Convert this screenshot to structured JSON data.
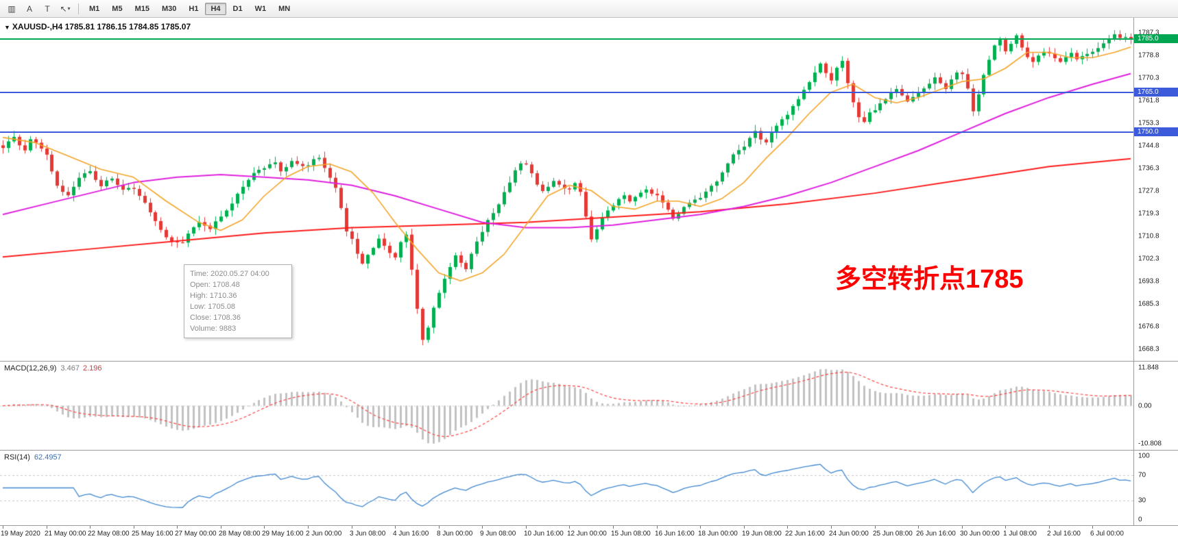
{
  "toolbar": {
    "tools": [
      {
        "id": "chart-type-tool",
        "icon_name": "candlestick-chart-icon",
        "glyph": "▥"
      },
      {
        "id": "text-label-tool",
        "icon_name": "text-a-icon",
        "glyph": "A"
      },
      {
        "id": "text-box-tool",
        "icon_name": "text-t-icon",
        "glyph": "T"
      },
      {
        "id": "drawing-tools-button",
        "icon_name": "arrow-tool-icon",
        "glyph": "↖",
        "caret": "▾"
      }
    ],
    "timeframes": [
      {
        "label": "M1",
        "active": false
      },
      {
        "label": "M5",
        "active": false
      },
      {
        "label": "M15",
        "active": false
      },
      {
        "label": "M30",
        "active": false
      },
      {
        "label": "H1",
        "active": false
      },
      {
        "label": "H4",
        "active": true
      },
      {
        "label": "D1",
        "active": false
      },
      {
        "label": "W1",
        "active": false
      },
      {
        "label": "MN",
        "active": false
      }
    ]
  },
  "header": {
    "collapse_icon": "▼",
    "symbol": "XAUUSD-,H4",
    "ohlc": "1785.81 1786.15 1784.85 1785.07"
  },
  "annotation": {
    "text": "多空转折点1785",
    "color": "#ff0000"
  },
  "tooltip": {
    "lines": [
      "Time: 2020.05.27 04:00",
      "Open: 1708.48",
      "High:  1710.36",
      "Low:  1705.08",
      "Close: 1708.36",
      "Volume: 9883"
    ]
  },
  "price_axis": {
    "min": 1663.9,
    "max": 1793.0,
    "labels": [
      "1787.3",
      "1778.8",
      "1770.3",
      "1761.8",
      "1753.3",
      "1744.8",
      "1736.3",
      "1727.8",
      "1719.3",
      "1710.8",
      "1702.3",
      "1693.8",
      "1685.3",
      "1676.8",
      "1668.3"
    ]
  },
  "hlines": [
    {
      "label": "1785.0",
      "value": 1785.0,
      "color": "#00a651"
    },
    {
      "label": "1765.0",
      "value": 1765.0,
      "color": "#3b5bdb"
    },
    {
      "label": "1750.0",
      "value": 1750.0,
      "color": "#3b5bdb"
    }
  ],
  "chart_data": {
    "type": "candlestick",
    "title": "XAUUSD-,H4",
    "bars": 208,
    "first_open": 1745.0,
    "price_range": [
      1663.9,
      1793.0
    ],
    "horizontal_lines": [
      1785.0,
      1765.0,
      1750.0
    ],
    "colors": {
      "up": "#00b050",
      "down": "#e53935",
      "ma_fast": "#f4a428",
      "ma_mid": "#df20df",
      "ma_slow": "#ff1a1a"
    },
    "closes": [
      1744.0,
      1746.5,
      1748.2,
      1745.0,
      1743.1,
      1747.3,
      1746.0,
      1743.8,
      1741.5,
      1735.2,
      1729.8,
      1727.5,
      1726.2,
      1729.4,
      1732.8,
      1734.5,
      1735.3,
      1732.0,
      1729.6,
      1731.8,
      1732.5,
      1730.1,
      1728.3,
      1729.0,
      1728.6,
      1726.0,
      1723.4,
      1719.8,
      1716.5,
      1713.2,
      1710.4,
      1708.9,
      1708.5,
      1708.4,
      1711.8,
      1714.2,
      1716.1,
      1714.8,
      1713.5,
      1716.4,
      1718.2,
      1720.5,
      1723.1,
      1726.8,
      1729.4,
      1732.0,
      1734.6,
      1735.8,
      1736.4,
      1737.9,
      1738.6,
      1735.2,
      1736.8,
      1739.1,
      1738.0,
      1737.2,
      1737.5,
      1739.8,
      1740.3,
      1736.5,
      1732.8,
      1729.0,
      1721.4,
      1712.6,
      1709.8,
      1704.2,
      1700.5,
      1703.8,
      1706.4,
      1709.9,
      1707.2,
      1704.5,
      1702.8,
      1708.6,
      1711.4,
      1698.2,
      1683.5,
      1671.8,
      1676.4,
      1683.9,
      1689.5,
      1694.8,
      1699.2,
      1703.6,
      1700.8,
      1698.4,
      1704.2,
      1708.8,
      1712.4,
      1716.9,
      1719.5,
      1722.8,
      1727.4,
      1731.0,
      1735.6,
      1738.2,
      1737.8,
      1734.5,
      1730.2,
      1727.8,
      1729.4,
      1731.6,
      1730.2,
      1728.8,
      1728.4,
      1730.8,
      1727.5,
      1718.2,
      1709.6,
      1713.4,
      1717.8,
      1720.5,
      1722.4,
      1724.8,
      1726.2,
      1723.9,
      1725.6,
      1727.2,
      1728.4,
      1726.8,
      1726.2,
      1723.5,
      1720.8,
      1717.4,
      1719.2,
      1721.8,
      1723.4,
      1724.6,
      1725.2,
      1727.6,
      1729.8,
      1731.4,
      1734.8,
      1738.2,
      1741.6,
      1743.2,
      1744.5,
      1747.8,
      1750.4,
      1747.2,
      1746.1,
      1749.8,
      1752.4,
      1754.8,
      1756.5,
      1759.8,
      1762.4,
      1765.9,
      1768.8,
      1772.4,
      1775.8,
      1772.2,
      1769.4,
      1774.2,
      1776.8,
      1768.4,
      1761.2,
      1755.6,
      1753.8,
      1757.4,
      1758.2,
      1760.8,
      1762.4,
      1764.9,
      1766.2,
      1763.8,
      1761.5,
      1763.2,
      1764.8,
      1766.4,
      1768.2,
      1770.6,
      1768.4,
      1766.2,
      1769.8,
      1772.4,
      1771.8,
      1766.4,
      1757.8,
      1764.2,
      1771.5,
      1777.2,
      1782.6,
      1784.8,
      1780.4,
      1783.2,
      1786.4,
      1781.8,
      1778.2,
      1776.4,
      1778.8,
      1780.2,
      1779.6,
      1777.8,
      1776.4,
      1778.2,
      1779.8,
      1777.4,
      1778.6,
      1779.4,
      1780.2,
      1781.6,
      1783.4,
      1785.2,
      1786.8,
      1785.4,
      1785.8,
      1785.07
    ],
    "moving_averages": {
      "fast_orange": [
        [
          0,
          1748
        ],
        [
          6,
          1746
        ],
        [
          12,
          1741
        ],
        [
          18,
          1736
        ],
        [
          24,
          1733
        ],
        [
          30,
          1724
        ],
        [
          36,
          1716
        ],
        [
          40,
          1713
        ],
        [
          44,
          1717
        ],
        [
          48,
          1726
        ],
        [
          52,
          1733
        ],
        [
          56,
          1737
        ],
        [
          60,
          1738
        ],
        [
          64,
          1735
        ],
        [
          68,
          1727
        ],
        [
          72,
          1716
        ],
        [
          76,
          1706
        ],
        [
          80,
          1697
        ],
        [
          84,
          1694
        ],
        [
          88,
          1697
        ],
        [
          92,
          1704
        ],
        [
          96,
          1715
        ],
        [
          100,
          1726
        ],
        [
          104,
          1730
        ],
        [
          108,
          1728
        ],
        [
          112,
          1722
        ],
        [
          116,
          1721
        ],
        [
          120,
          1724
        ],
        [
          124,
          1724
        ],
        [
          128,
          1722
        ],
        [
          132,
          1725
        ],
        [
          136,
          1731
        ],
        [
          140,
          1740
        ],
        [
          144,
          1748
        ],
        [
          148,
          1757
        ],
        [
          152,
          1765
        ],
        [
          156,
          1768
        ],
        [
          160,
          1763
        ],
        [
          164,
          1761
        ],
        [
          168,
          1763
        ],
        [
          172,
          1766
        ],
        [
          176,
          1769
        ],
        [
          180,
          1770
        ],
        [
          184,
          1774
        ],
        [
          188,
          1780
        ],
        [
          192,
          1780
        ],
        [
          196,
          1778
        ],
        [
          200,
          1778
        ],
        [
          204,
          1780
        ],
        [
          207,
          1782
        ]
      ],
      "mid_magenta": [
        [
          0,
          1719
        ],
        [
          8,
          1723
        ],
        [
          16,
          1727
        ],
        [
          24,
          1731
        ],
        [
          32,
          1733
        ],
        [
          40,
          1734
        ],
        [
          48,
          1733
        ],
        [
          56,
          1732
        ],
        [
          64,
          1730
        ],
        [
          72,
          1726
        ],
        [
          80,
          1721
        ],
        [
          88,
          1716
        ],
        [
          96,
          1714
        ],
        [
          104,
          1714
        ],
        [
          112,
          1715
        ],
        [
          120,
          1717
        ],
        [
          128,
          1719
        ],
        [
          136,
          1722
        ],
        [
          144,
          1726
        ],
        [
          152,
          1731
        ],
        [
          160,
          1737
        ],
        [
          168,
          1743
        ],
        [
          176,
          1750
        ],
        [
          184,
          1757
        ],
        [
          192,
          1763
        ],
        [
          200,
          1768
        ],
        [
          207,
          1772
        ]
      ],
      "slow_red": [
        [
          0,
          1703
        ],
        [
          16,
          1706
        ],
        [
          32,
          1709
        ],
        [
          48,
          1712
        ],
        [
          64,
          1714
        ],
        [
          80,
          1715
        ],
        [
          96,
          1716
        ],
        [
          112,
          1718
        ],
        [
          128,
          1720
        ],
        [
          144,
          1723
        ],
        [
          160,
          1727
        ],
        [
          176,
          1732
        ],
        [
          192,
          1737
        ],
        [
          207,
          1740
        ]
      ]
    }
  },
  "macd_panel": {
    "label": "MACD(12,26,9)",
    "value_main": "3.467",
    "value_signal": "2.196",
    "axis": {
      "max": "11.848",
      "mid": "0.00",
      "min": "-10.808"
    },
    "params": {
      "fast": 12,
      "slow": 26,
      "signal": 9
    },
    "colors": {
      "histogram": "#c2c2c2",
      "signal": "#ff4040"
    }
  },
  "rsi_panel": {
    "label": "RSI(14)",
    "value": "62.4957",
    "period": 14,
    "axis": [
      "100",
      "70",
      "30",
      "0"
    ],
    "levels": [
      70,
      30
    ],
    "color": "#3f87d0"
  },
  "time_axis": {
    "labels": [
      "19 May 2020",
      "21 May 00:00",
      "22 May 08:00",
      "25 May 16:00",
      "27 May 00:00",
      "28 May 08:00",
      "29 May 16:00",
      "2 Jun 00:00",
      "3 Jun 08:00",
      "4 Jun 16:00",
      "8 Jun 00:00",
      "9 Jun 08:00",
      "10 Jun 16:00",
      "12 Jun 00:00",
      "15 Jun 08:00",
      "16 Jun 16:00",
      "18 Jun 00:00",
      "19 Jun 08:00",
      "22 Jun 16:00",
      "24 Jun 00:00",
      "25 Jun 08:00",
      "26 Jun 16:00",
      "30 Jun 00:00",
      "1 Jul 08:00",
      "2 Jul 16:00",
      "6 Jul 00:00"
    ]
  }
}
